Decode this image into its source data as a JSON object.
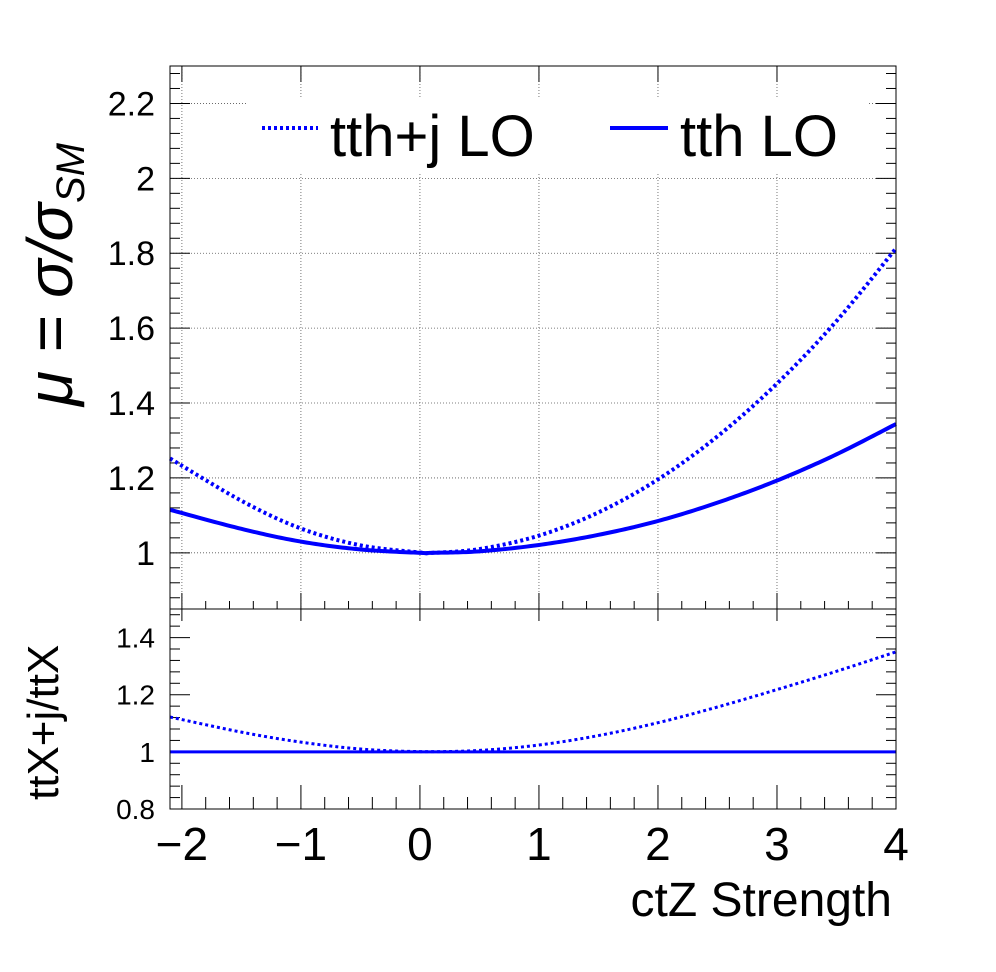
{
  "chart_data": [
    {
      "type": "line",
      "panel": "main",
      "ylabel": "μ = σ/σ",
      "ylabel_sub": "SM",
      "xlim": [
        -2.1,
        4.0
      ],
      "ylim": [
        0.85,
        2.3
      ],
      "yticks": [
        1,
        1.2,
        1.4,
        1.6,
        1.8,
        2,
        2.2
      ],
      "ytick_labels": [
        "1",
        "1.2",
        "1.4",
        "1.6",
        "1.8",
        "2",
        "2.2"
      ],
      "grid": true,
      "legend_placement": "top",
      "series": [
        {
          "name": "tth+j LO",
          "style": "dotted",
          "color": "#0000ff",
          "x": [
            -2.1,
            -1.5,
            -1.0,
            -0.5,
            0.0,
            0.1,
            0.5,
            1.0,
            1.5,
            2.0,
            2.5,
            3.0,
            3.5,
            4.0
          ],
          "y": [
            1.252,
            1.139,
            1.065,
            1.02,
            1.001,
            1.0,
            1.01,
            1.046,
            1.108,
            1.196,
            1.311,
            1.452,
            1.619,
            1.813
          ]
        },
        {
          "name": "tth LO",
          "style": "solid",
          "color": "#0000ff",
          "x": [
            -2.1,
            -1.5,
            -1.0,
            -0.5,
            0.0,
            0.1,
            0.5,
            1.0,
            1.5,
            2.0,
            2.5,
            3.0,
            3.5,
            4.0
          ],
          "y": [
            1.115,
            1.064,
            1.03,
            1.009,
            1.0,
            1.0,
            1.004,
            1.021,
            1.048,
            1.085,
            1.134,
            1.193,
            1.263,
            1.344
          ]
        }
      ]
    },
    {
      "type": "line",
      "panel": "ratio",
      "ylabel": "ttX+j/ttX",
      "xlabel": "ctZ Strength",
      "xlim": [
        -2.1,
        4.0
      ],
      "ylim": [
        0.8,
        1.5
      ],
      "xticks": [
        -2,
        -1,
        0,
        1,
        2,
        3,
        4
      ],
      "xtick_labels": [
        "−2",
        "−1",
        "0",
        "1",
        "2",
        "3",
        "4"
      ],
      "yticks": [
        0.8,
        1,
        1.2,
        1.4
      ],
      "ytick_labels": [
        "0.8",
        "1",
        "1.2",
        "1.4"
      ],
      "grid": false,
      "series": [
        {
          "name": "tth+j LO",
          "style": "dotted",
          "color": "#0000ff",
          "x": [
            -2.1,
            -1.5,
            -1.0,
            -0.5,
            0.0,
            0.5,
            1.0,
            1.5,
            2.0,
            2.5,
            3.0,
            3.5,
            4.0
          ],
          "y": [
            1.122,
            1.069,
            1.034,
            1.01,
            1.001,
            1.005,
            1.024,
            1.057,
            1.102,
            1.157,
            1.218,
            1.282,
            1.35
          ]
        },
        {
          "name": "tth LO",
          "style": "solid",
          "color": "#0000ff",
          "x": [
            -2.1,
            4.0
          ],
          "y": [
            1.0,
            1.0
          ]
        }
      ]
    }
  ]
}
